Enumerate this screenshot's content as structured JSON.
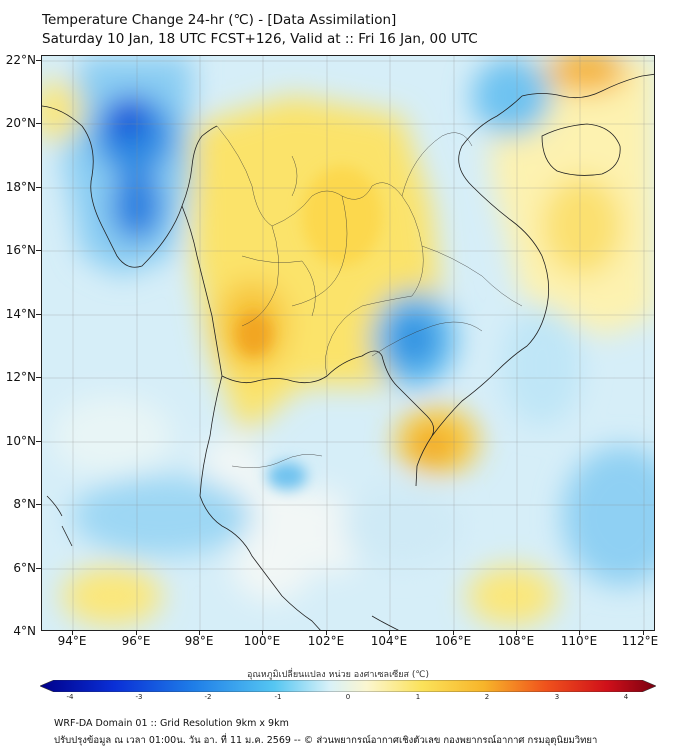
{
  "header": {
    "title_line1": "Temperature Change 24-hr (℃) - [Data Assimilation]",
    "title_line2": "Saturday 10 Jan, 18 UTC FCST+126, Valid at :: Fri 16 Jan, 00 UTC"
  },
  "map": {
    "lat_labels": [
      "22°N",
      "20°N",
      "18°N",
      "16°N",
      "14°N",
      "12°N",
      "10°N",
      "8°N",
      "6°N",
      "4°N"
    ],
    "lon_labels": [
      "94°E",
      "96°E",
      "98°E",
      "100°E",
      "102°E",
      "104°E",
      "106°E",
      "108°E",
      "110°E",
      "112°E"
    ],
    "colors": {
      "cold_dark": "#0a3ad8",
      "cold": "#3fa8ee",
      "cold_light": "#a8dcf6",
      "neutral": "#f2f7f6",
      "warm_light": "#fdf0a0",
      "warm": "#f8cf3a",
      "hot": "#f2a11e"
    }
  },
  "colorbar": {
    "title": "อุณหภูมิเปลี่ยนแปลง หน่วย องศาเซลเซียส (℃)",
    "ticks": [
      "-4",
      "-3",
      "-2",
      "-1",
      "0",
      "1",
      "2",
      "3",
      "4"
    ]
  },
  "footer": {
    "line1": "WRF-DA Domain 01 :: Grid Resolution 9km x 9km",
    "line2": "ปรับปรุงข้อมูล ณ เวลา 01:00น. วัน อา. ที่ 11 ม.ค. 2569 -- © ส่วนพยากรณ์อากาศเชิงตัวเลข กองพยากรณ์อากาศ กรมอุตุนิยมวิทยา"
  }
}
